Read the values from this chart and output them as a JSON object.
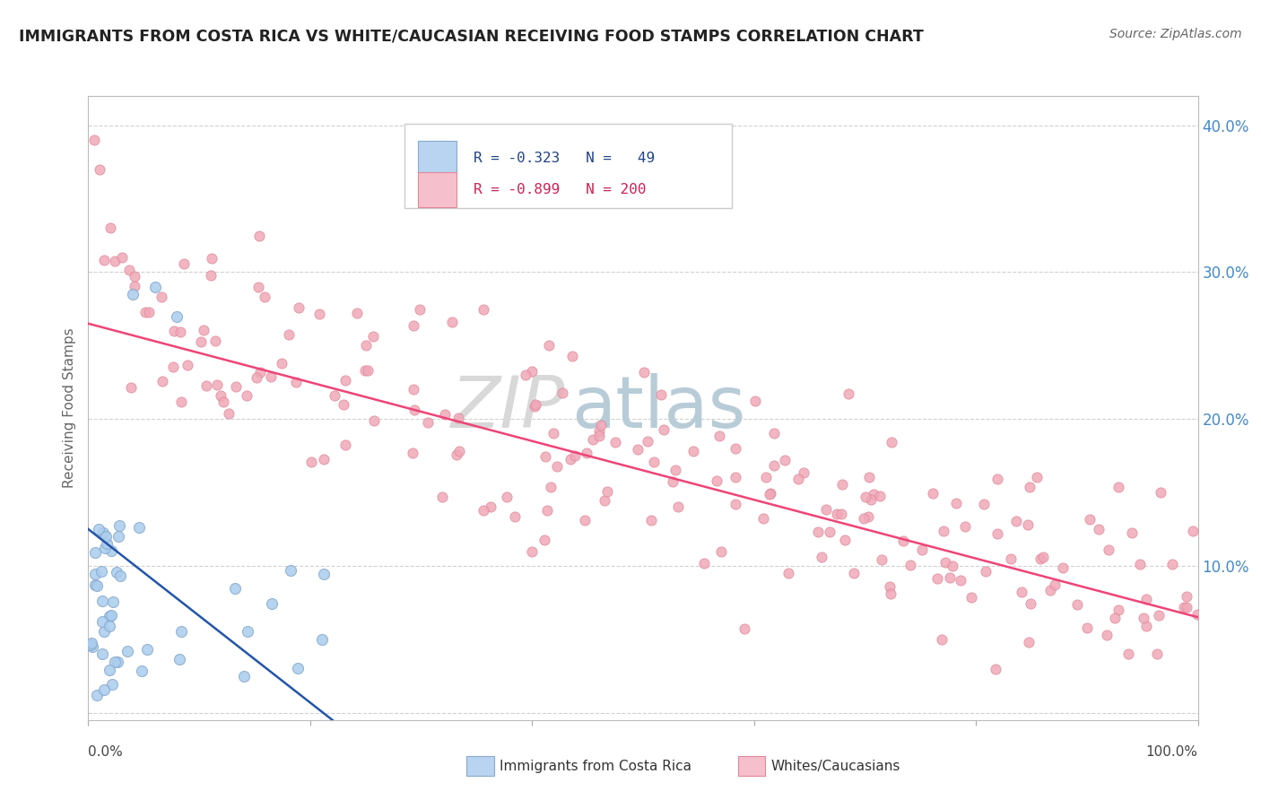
{
  "title": "IMMIGRANTS FROM COSTA RICA VS WHITE/CAUCASIAN RECEIVING FOOD STAMPS CORRELATION CHART",
  "source": "Source: ZipAtlas.com",
  "ylabel": "Receiving Food Stamps",
  "xlim": [
    0.0,
    1.0
  ],
  "ylim": [
    -0.005,
    0.42
  ],
  "y_ticks": [
    0.0,
    0.1,
    0.2,
    0.3,
    0.4
  ],
  "y_tick_labels": [
    "",
    "10.0%",
    "20.0%",
    "30.0%",
    "40.0%"
  ],
  "background_color": "#ffffff",
  "grid_color": "#cccccc",
  "title_color": "#222222",
  "axis_label_color": "#666666",
  "blue_scatter_color": "#aaccee",
  "blue_scatter_edge": "#88aacc",
  "pink_scatter_color": "#f0a8b8",
  "pink_scatter_edge": "#e08898",
  "blue_line_color": "#2255aa",
  "pink_line_color": "#ee4477",
  "legend_blue_fill": "#b8d4f0",
  "legend_pink_fill": "#f5c0cc",
  "legend_text_blue": "#224488",
  "legend_text_pink": "#cc2255",
  "right_axis_color": "#4488cc",
  "watermark_zip_color": "#dddddd",
  "watermark_atlas_color": "#bbccdd"
}
